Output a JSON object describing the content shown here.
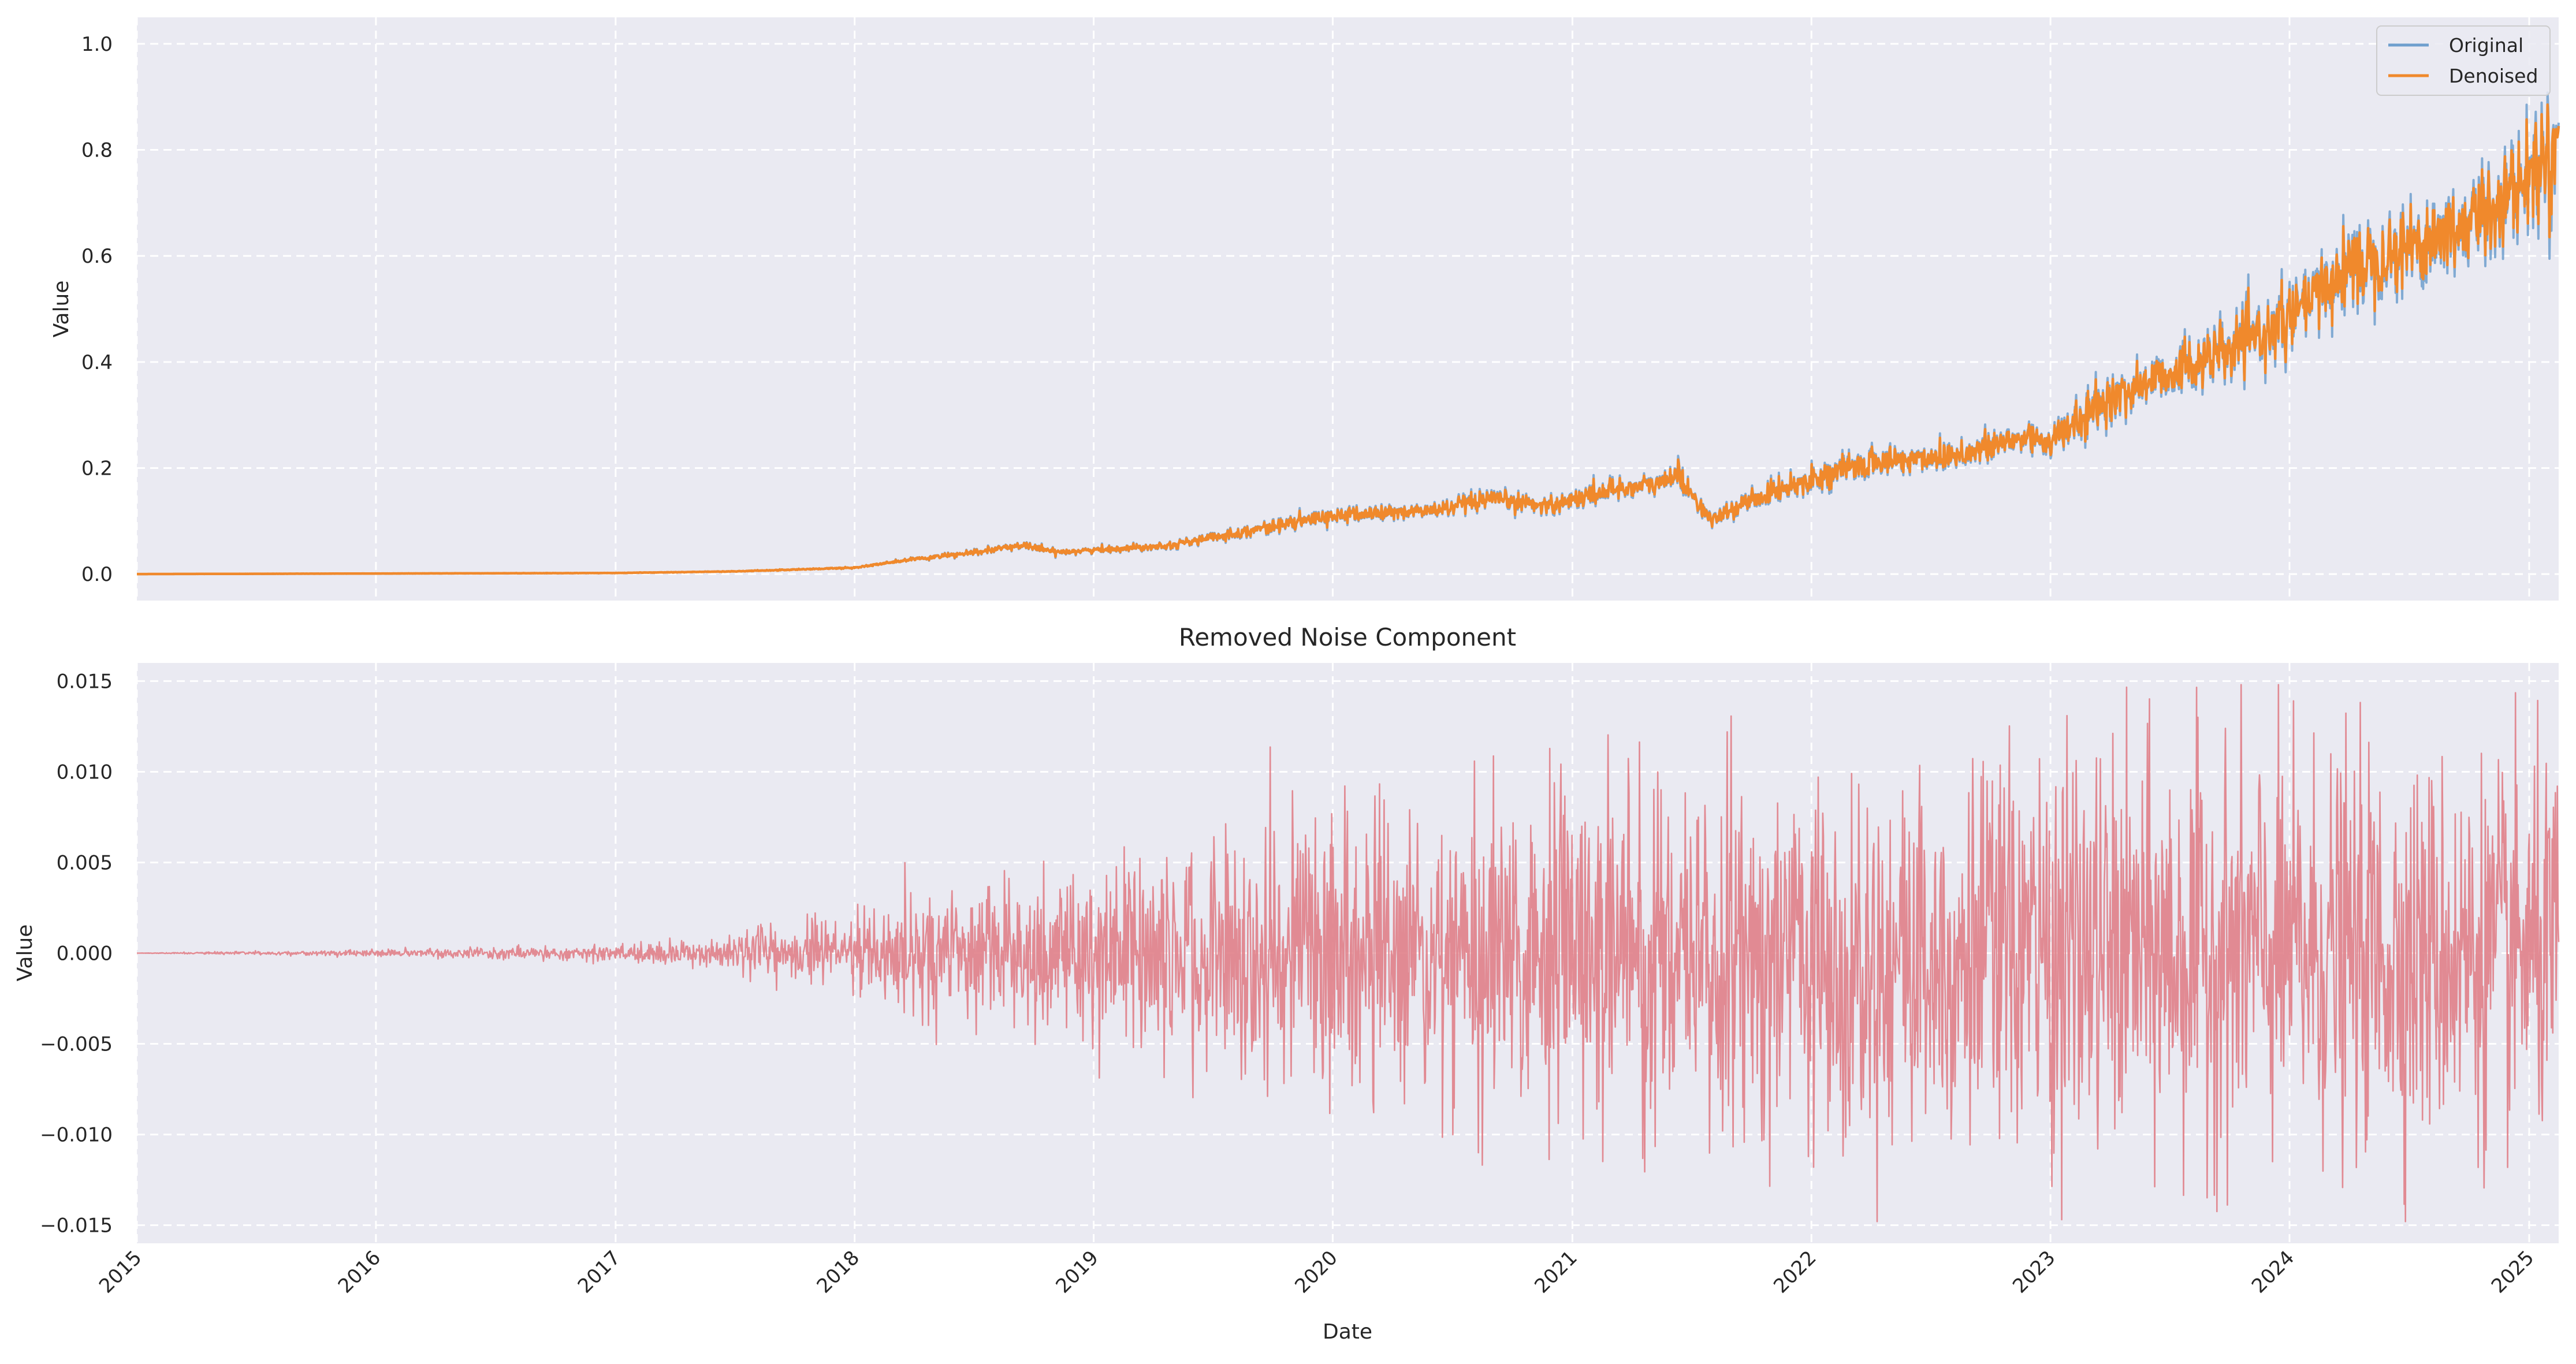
{
  "chart_data": [
    {
      "type": "line",
      "title": "",
      "xlabel": "",
      "ylabel": "Value",
      "ylim": [
        -0.05,
        1.05
      ],
      "yticks": [
        "0.0",
        "0.2",
        "0.4",
        "0.6",
        "0.8",
        "1.0"
      ],
      "grid": true,
      "legend": "top-right",
      "series": [
        {
          "name": "Original",
          "color": "#6f9fce",
          "x": [
            "2015-01-01",
            "2016-01-01",
            "2017-01-01",
            "2017-07-01",
            "2018-01-01",
            "2018-04-01",
            "2018-07-01",
            "2018-09-15",
            "2018-11-01",
            "2019-01-01",
            "2019-05-01",
            "2019-10-01",
            "2020-01-01",
            "2020-06-01",
            "2020-09-01",
            "2020-12-01",
            "2021-03-01",
            "2021-05-15",
            "2021-06-10",
            "2021-08-01",
            "2021-10-01",
            "2022-01-01",
            "2022-04-01",
            "2022-07-01",
            "2022-09-01",
            "2022-12-01",
            "2023-01-01",
            "2023-04-01",
            "2023-07-01",
            "2023-10-01",
            "2024-01-01",
            "2024-04-01",
            "2024-07-01",
            "2024-10-01",
            "2025-01-01",
            "2025-02-15"
          ],
          "values": [
            0.0,
            0.001,
            0.002,
            0.005,
            0.012,
            0.028,
            0.04,
            0.055,
            0.042,
            0.045,
            0.055,
            0.09,
            0.11,
            0.12,
            0.14,
            0.13,
            0.16,
            0.17,
            0.19,
            0.1,
            0.14,
            0.18,
            0.21,
            0.22,
            0.23,
            0.26,
            0.25,
            0.33,
            0.38,
            0.42,
            0.48,
            0.58,
            0.62,
            0.66,
            0.75,
            0.82
          ]
        },
        {
          "name": "Denoised",
          "color": "#f0892c",
          "x": [
            "2015-01-01",
            "2016-01-01",
            "2017-01-01",
            "2017-07-01",
            "2018-01-01",
            "2018-04-01",
            "2018-07-01",
            "2018-09-15",
            "2018-11-01",
            "2019-01-01",
            "2019-05-01",
            "2019-10-01",
            "2020-01-01",
            "2020-06-01",
            "2020-09-01",
            "2020-12-01",
            "2021-03-01",
            "2021-05-15",
            "2021-06-10",
            "2021-08-01",
            "2021-10-01",
            "2022-01-01",
            "2022-04-01",
            "2022-07-01",
            "2022-09-01",
            "2022-12-01",
            "2023-01-01",
            "2023-04-01",
            "2023-07-01",
            "2023-10-01",
            "2024-01-01",
            "2024-04-01",
            "2024-07-01",
            "2024-10-01",
            "2025-01-01",
            "2025-02-15"
          ],
          "values": [
            0.0,
            0.001,
            0.002,
            0.005,
            0.012,
            0.028,
            0.04,
            0.055,
            0.042,
            0.045,
            0.055,
            0.09,
            0.11,
            0.12,
            0.14,
            0.13,
            0.16,
            0.17,
            0.19,
            0.1,
            0.14,
            0.18,
            0.21,
            0.22,
            0.23,
            0.26,
            0.25,
            0.33,
            0.38,
            0.42,
            0.48,
            0.58,
            0.62,
            0.66,
            0.75,
            0.82
          ]
        }
      ]
    },
    {
      "type": "line",
      "title": "Removed Noise Component",
      "xlabel": "Date",
      "ylabel": "Value",
      "ylim": [
        -0.016,
        0.016
      ],
      "yticks": [
        "−0.015",
        "−0.010",
        "−0.005",
        "0.000",
        "0.005",
        "0.010",
        "0.015"
      ],
      "xticks": [
        "2015",
        "2016",
        "2017",
        "2018",
        "2019",
        "2020",
        "2021",
        "2022",
        "2023",
        "2024",
        "2025"
      ],
      "grid": true,
      "series": [
        {
          "color": "#e07f88",
          "description": "noise amplitude envelope",
          "x": [
            "2015-01-01",
            "2016-01-01",
            "2017-01-01",
            "2017-07-01",
            "2018-01-01",
            "2018-07-01",
            "2019-01-01",
            "2019-07-01",
            "2020-01-01",
            "2021-01-01",
            "2022-01-01",
            "2023-01-01",
            "2024-01-01",
            "2025-02-15"
          ],
          "values": [
            0.0,
            0.0002,
            0.0005,
            0.001,
            0.0025,
            0.004,
            0.005,
            0.007,
            0.009,
            0.01,
            0.011,
            0.012,
            0.012,
            0.011
          ]
        }
      ]
    }
  ]
}
